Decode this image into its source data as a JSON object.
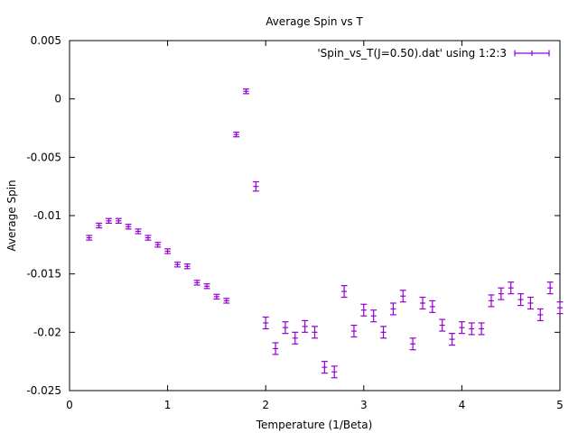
{
  "chart_data": {
    "type": "scatter",
    "title": "Average Spin vs T",
    "xlabel": "Temperature (1/Beta)",
    "ylabel": "Average Spin",
    "xlim": [
      0,
      5
    ],
    "ylim": [
      -0.025,
      0.005
    ],
    "xticks": [
      "0",
      "1",
      "2",
      "3",
      "4",
      "5"
    ],
    "yticks": [
      "0.005",
      "0",
      "-0.005",
      "-0.01",
      "-0.015",
      "-0.02",
      "-0.025"
    ],
    "grid": false,
    "legend_position": "top-right",
    "series": [
      {
        "name": "'Spin_vs_T(J=0.50).dat' using 1:2:3",
        "color": "#9400d3",
        "x": [
          0.2,
          0.3,
          0.4,
          0.5,
          0.6,
          0.7,
          0.8,
          0.9,
          1.0,
          1.1,
          1.2,
          1.3,
          1.4,
          1.5,
          1.6,
          1.7,
          1.8,
          1.9,
          2.0,
          2.1,
          2.2,
          2.3,
          2.4,
          2.5,
          2.6,
          2.7,
          2.8,
          2.9,
          3.0,
          3.1,
          3.2,
          3.3,
          3.4,
          3.5,
          3.6,
          3.7,
          3.8,
          3.9,
          4.0,
          4.1,
          4.2,
          4.3,
          4.4,
          4.5,
          4.6,
          4.7,
          4.8,
          4.9,
          5.0
        ],
        "y": [
          -0.0119,
          -0.01085,
          -0.01045,
          -0.01045,
          -0.01095,
          -0.01135,
          -0.0119,
          -0.0125,
          -0.01305,
          -0.0142,
          -0.01435,
          -0.01575,
          -0.01605,
          -0.01695,
          -0.0173,
          -0.00305,
          0.00065,
          -0.0075,
          -0.0192,
          -0.0214,
          -0.0196,
          -0.0205,
          -0.0195,
          -0.02,
          -0.023,
          -0.0234,
          -0.0165,
          -0.0199,
          -0.0181,
          -0.0186,
          -0.02,
          -0.018,
          -0.0169,
          -0.021,
          -0.0175,
          -0.0178,
          -0.0194,
          -0.0206,
          -0.0196,
          -0.0197,
          -0.0197,
          -0.0173,
          -0.0167,
          -0.0162,
          -0.0172,
          -0.0175,
          -0.0185,
          -0.0162,
          -0.0179
        ],
        "err": [
          0.0002,
          0.0002,
          0.0002,
          0.0002,
          0.0002,
          0.0002,
          0.0002,
          0.0002,
          0.0002,
          0.0002,
          0.0002,
          0.0002,
          0.0002,
          0.0002,
          0.0002,
          0.0002,
          0.0002,
          0.0004,
          0.0005,
          0.0005,
          0.0005,
          0.0005,
          0.0005,
          0.0005,
          0.0005,
          0.0005,
          0.0005,
          0.0005,
          0.0005,
          0.0005,
          0.0005,
          0.0005,
          0.0005,
          0.0005,
          0.0005,
          0.0005,
          0.0005,
          0.0005,
          0.0005,
          0.0005,
          0.0005,
          0.0005,
          0.0005,
          0.0005,
          0.0005,
          0.0005,
          0.0005,
          0.0005,
          0.0005
        ]
      }
    ]
  }
}
